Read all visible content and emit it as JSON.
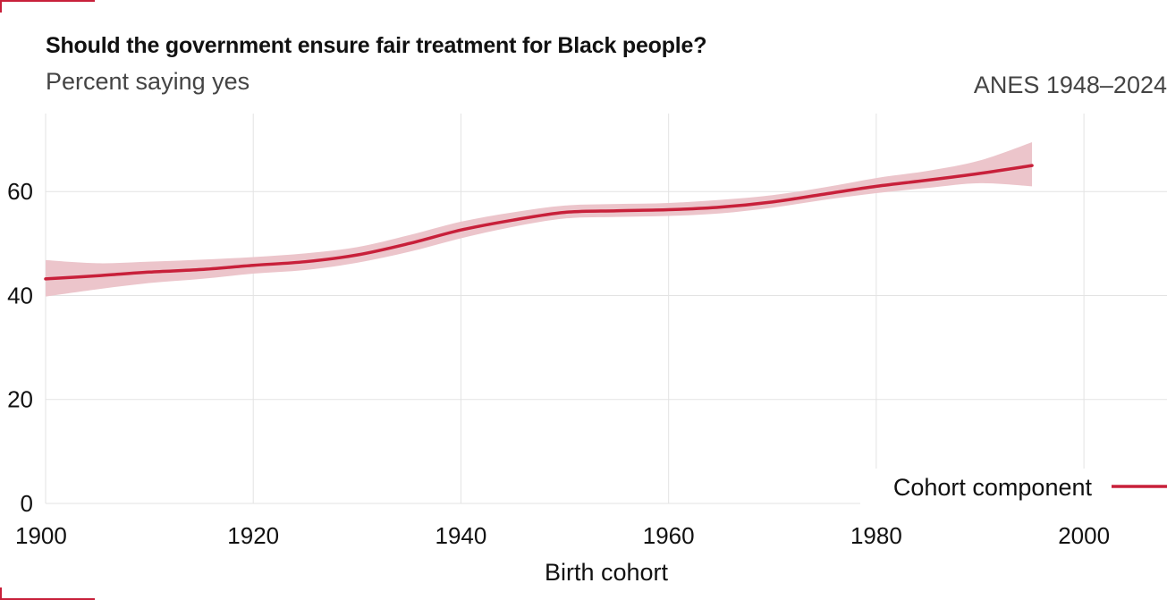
{
  "title": "Should the government ensure fair treatment for Black people?",
  "subtitle": "Percent saying yes",
  "source": "ANES 1948–2024",
  "colors": {
    "line": "#c8203a",
    "band": "#ecc5cb",
    "grid": "#e3e3e3",
    "accent": "#c8203a"
  },
  "chart_data": {
    "type": "line",
    "xlabel": "Birth cohort",
    "ylabel": "",
    "xlim": [
      1900,
      2008
    ],
    "ylim": [
      0,
      75
    ],
    "x_ticks": [
      1900,
      1920,
      1940,
      1960,
      1980,
      2000
    ],
    "y_ticks": [
      0,
      20,
      40,
      60
    ],
    "legend": {
      "position": "bottom-right"
    },
    "series": [
      {
        "name": "Cohort component",
        "x": [
          1900,
          1905,
          1910,
          1915,
          1920,
          1925,
          1930,
          1935,
          1940,
          1945,
          1950,
          1955,
          1960,
          1965,
          1970,
          1975,
          1980,
          1985,
          1990,
          1995
        ],
        "y": [
          43.2,
          43.8,
          44.5,
          45.0,
          45.8,
          46.5,
          47.8,
          50.0,
          52.6,
          54.5,
          56.0,
          56.3,
          56.5,
          57.0,
          58.0,
          59.5,
          61.0,
          62.2,
          63.5,
          65.0
        ],
        "lower": [
          39.8,
          41.2,
          42.4,
          43.2,
          44.2,
          44.9,
          46.3,
          48.4,
          51.0,
          53.2,
          54.8,
          55.1,
          55.3,
          55.8,
          56.9,
          58.4,
          59.7,
          60.7,
          61.6,
          61.0
        ],
        "upper": [
          46.8,
          46.2,
          46.5,
          46.9,
          47.4,
          48.1,
          49.3,
          51.6,
          54.2,
          56.0,
          57.3,
          57.6,
          57.8,
          58.4,
          59.3,
          60.8,
          62.6,
          64.0,
          66.0,
          69.5
        ]
      }
    ]
  }
}
